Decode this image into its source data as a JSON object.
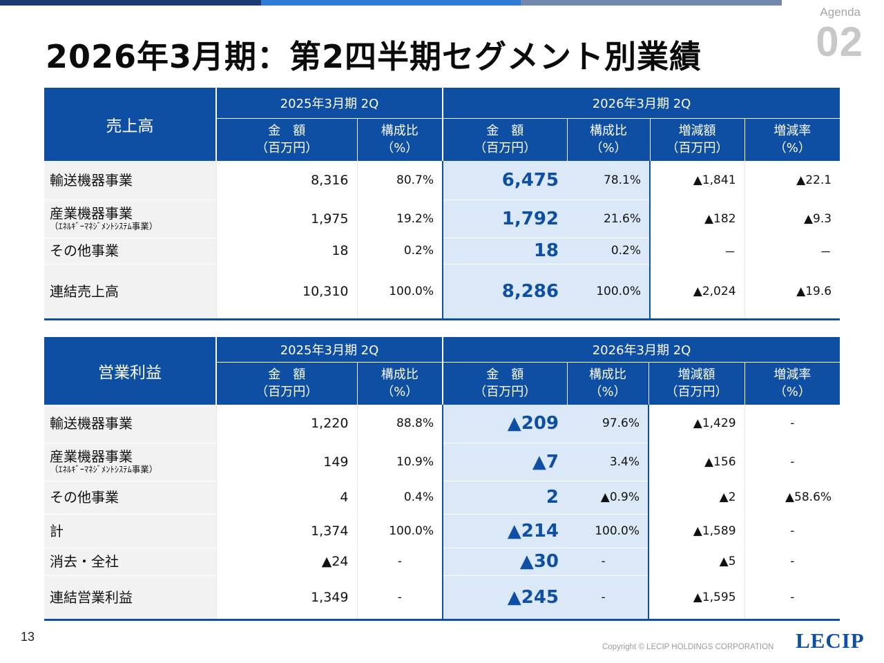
{
  "theme": {
    "accent": "#0f4fa3",
    "highlight": "#dbe8f7",
    "topbar": [
      "#1a3a73",
      "#2f7ad6",
      "#7388ad"
    ]
  },
  "slide": {
    "title": "2026年3月期：第2四半期セグメント別業績",
    "agenda_label": "Agenda",
    "agenda_number": "02",
    "page_number": "13",
    "copyright": "Copyright © LECIP HOLDINGS CORPORATION",
    "logo_text": "LECIP"
  },
  "sales": {
    "corner": "売上高",
    "period_prev": "2025年3月期 2Q",
    "period_curr": "2026年3月期 2Q",
    "headers": {
      "amount": [
        "金　額",
        "（百万円）"
      ],
      "ratio": [
        "構成比",
        "（%）"
      ],
      "change_amt": [
        "増減額",
        "（百万円）"
      ],
      "change_rate": [
        "増減率",
        "（%）"
      ]
    },
    "rows": [
      {
        "label": "輸送機器事業",
        "sub": "",
        "prev": "8,316",
        "prev_pct": "80.7%",
        "curr": "6,475",
        "curr_pct": "78.1%",
        "chg": "▲1,841",
        "rate": "▲22.1"
      },
      {
        "label": "産業機器事業",
        "sub": "（ｴﾈﾙｷﾞｰﾏﾈｼﾞﾒﾝﾄｼｽﾃﾑ事業）",
        "prev": "1,975",
        "prev_pct": "19.2%",
        "curr": "1,792",
        "curr_pct": "21.6%",
        "chg": "▲182",
        "rate": "▲9.3"
      },
      {
        "label": "その他事業",
        "sub": "",
        "prev": "18",
        "prev_pct": "0.2%",
        "curr": "18",
        "curr_pct": "0.2%",
        "chg": "－",
        "rate": "－"
      },
      {
        "label": "連結売上高",
        "sub": "",
        "prev": "10,310",
        "prev_pct": "100.0%",
        "curr": "8,286",
        "curr_pct": "100.0%",
        "chg": "▲2,024",
        "rate": "▲19.6"
      }
    ]
  },
  "profit": {
    "corner": "営業利益",
    "period_prev": "2025年3月期 2Q",
    "period_curr": "2026年3月期 2Q",
    "headers": {
      "amount": [
        "金　額",
        "（百万円）"
      ],
      "ratio": [
        "構成比",
        "（%）"
      ],
      "change_amt": [
        "増減額",
        "（百万円）"
      ],
      "change_rate": [
        "増減率",
        "（%）"
      ]
    },
    "rows": [
      {
        "label": "輸送機器事業",
        "sub": "",
        "prev": "1,220",
        "prev_pct": "88.8%",
        "curr": "▲209",
        "curr_pct": "97.6%",
        "chg": "▲1,429",
        "rate": "-"
      },
      {
        "label": "産業機器事業",
        "sub": "（ｴﾈﾙｷﾞｰﾏﾈｼﾞﾒﾝﾄｼｽﾃﾑ事業）",
        "prev": "149",
        "prev_pct": "10.9%",
        "curr": "▲7",
        "curr_pct": "3.4%",
        "chg": "▲156",
        "rate": "-"
      },
      {
        "label": "その他事業",
        "sub": "",
        "prev": "4",
        "prev_pct": "0.4%",
        "curr": "2",
        "curr_pct": "▲0.9%",
        "chg": "▲2",
        "rate": "▲58.6%"
      },
      {
        "label": "計",
        "sub": "",
        "prev": "1,374",
        "prev_pct": "100.0%",
        "curr": "▲214",
        "curr_pct": "100.0%",
        "chg": "▲1,589",
        "rate": "-"
      },
      {
        "label": "消去・全社",
        "sub": "",
        "prev": "▲24",
        "prev_pct": "-",
        "curr": "▲30",
        "curr_pct": "-",
        "chg": "▲5",
        "rate": "-"
      },
      {
        "label": "連結営業利益",
        "sub": "",
        "prev": "1,349",
        "prev_pct": "-",
        "curr": "▲245",
        "curr_pct": "-",
        "chg": "▲1,595",
        "rate": "-"
      }
    ]
  }
}
